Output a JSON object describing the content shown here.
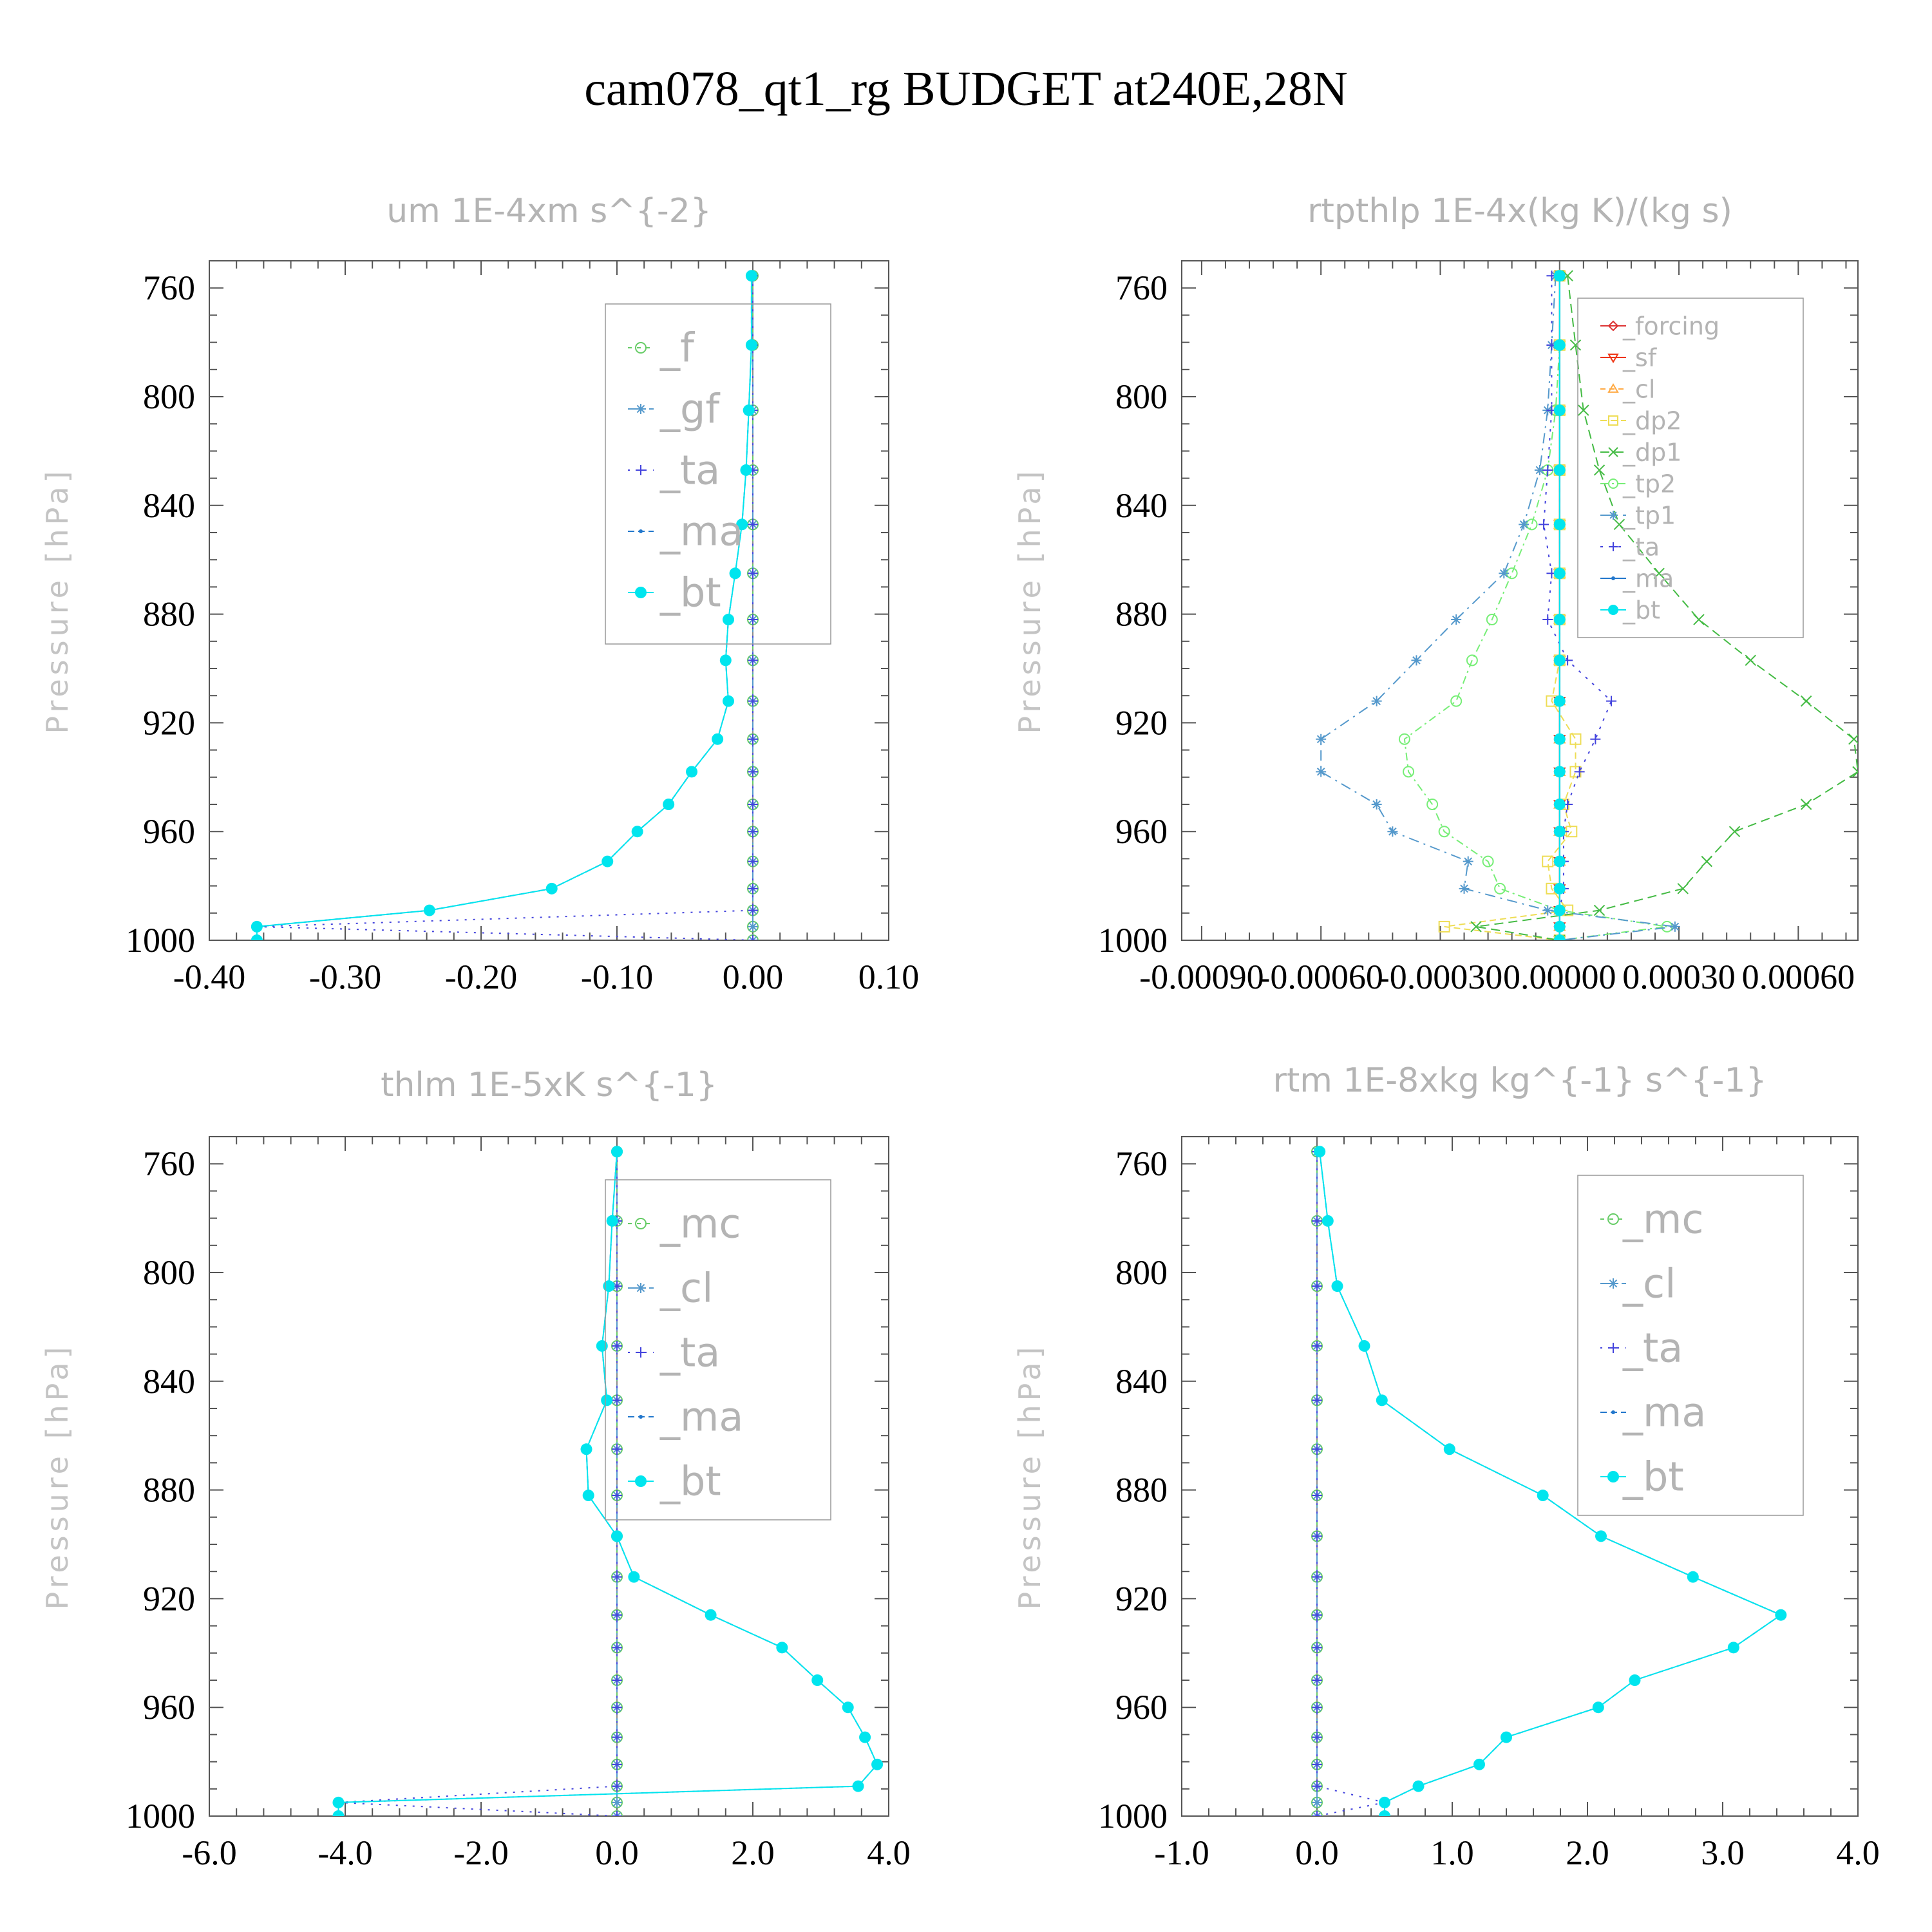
{
  "title": "cam078_qt1_rg  BUDGET at240E,28N",
  "chart_data": [
    {
      "type": "line",
      "title": "um   1E-4xm s^{-2}",
      "ylabel": "Pressure [hPa]",
      "xlim": [
        -0.4,
        0.1
      ],
      "xticks": [
        "-0.40",
        "-0.30",
        "-0.20",
        "-0.10",
        "0.00",
        "0.10"
      ],
      "xtick_values": [
        -0.4,
        -0.3,
        -0.2,
        -0.1,
        0.0,
        0.1
      ],
      "ylim": [
        1000,
        750
      ],
      "yticks": [
        "760",
        "800",
        "840",
        "880",
        "920",
        "960",
        "1000"
      ],
      "yticks_values": [
        760,
        800,
        840,
        880,
        920,
        960,
        1000
      ],
      "levels": [
        755.5,
        781,
        805,
        827,
        847,
        865,
        882,
        897,
        912,
        926,
        938,
        950,
        960,
        971,
        981,
        989,
        995,
        1000
      ],
      "legend_size": 62,
      "series": [
        {
          "name": "_f",
          "color": "#66cc66",
          "dash": "6 8",
          "marker": "circle-open",
          "values": [
            0,
            0,
            0,
            0,
            0,
            0,
            0,
            0,
            0,
            0,
            0,
            0,
            0,
            0,
            0,
            0,
            0,
            0
          ]
        },
        {
          "name": "_gf",
          "color": "#5599cc",
          "dash": "14 8 3 8",
          "marker": "star",
          "values": [
            0,
            0,
            0,
            0,
            0,
            0,
            0,
            0,
            0,
            0,
            0,
            0,
            0,
            0,
            0,
            0,
            0,
            0
          ]
        },
        {
          "name": "_ta",
          "color": "#4444dd",
          "dash": "3 10",
          "marker": "plus",
          "values": [
            0,
            0,
            0,
            0,
            0,
            0,
            0,
            0,
            0,
            0,
            0,
            0,
            0,
            0,
            0,
            0,
            -0.365,
            0
          ]
        },
        {
          "name": "_ma",
          "color": "#2277cc",
          "dash": "10 6",
          "marker": "dot",
          "values": [
            -0.001,
            -0.001,
            -0.003,
            -0.005,
            -0.008,
            -0.013,
            -0.018,
            -0.02,
            -0.018,
            -0.026,
            -0.045,
            -0.062,
            -0.085,
            -0.107,
            -0.148,
            -0.238,
            -0.365,
            -0.365
          ]
        },
        {
          "name": "_bt",
          "color": "#00e5ee",
          "dash": "",
          "marker": "disc",
          "values": [
            -0.001,
            -0.001,
            -0.003,
            -0.005,
            -0.008,
            -0.013,
            -0.018,
            -0.02,
            -0.018,
            -0.026,
            -0.045,
            -0.062,
            -0.085,
            -0.107,
            -0.148,
            -0.238,
            -0.365,
            -0.365
          ]
        }
      ]
    },
    {
      "type": "line",
      "title": "rtpthlp   1E-4x(kg K)/(kg s)",
      "ylabel": "Pressure [hPa]",
      "xlim": [
        -0.00095,
        0.00075
      ],
      "xticks": [
        "-0.00090",
        "-0.00060",
        "-0.00030",
        "0.00000",
        "0.00030",
        "0.00060"
      ],
      "xtick_values": [
        -0.0009,
        -0.0006,
        -0.0003,
        0.0,
        0.0003,
        0.0006
      ],
      "ylim": [
        1000,
        750
      ],
      "yticks": [
        "760",
        "800",
        "840",
        "880",
        "920",
        "960",
        "1000"
      ],
      "yticks_values": [
        760,
        800,
        840,
        880,
        920,
        960,
        1000
      ],
      "levels": [
        755.5,
        781,
        805,
        827,
        847,
        865,
        882,
        897,
        912,
        926,
        938,
        950,
        960,
        971,
        981,
        989,
        995,
        1000
      ],
      "legend_size": 38,
      "series": [
        {
          "name": "_forcing",
          "color": "#dd3333",
          "dash": "",
          "marker": "diamond",
          "values": [
            0,
            0,
            0,
            0,
            0,
            0,
            0,
            0,
            0,
            0,
            0,
            0,
            0,
            0,
            0,
            0,
            0,
            0
          ]
        },
        {
          "name": "_sf",
          "color": "#ee3311",
          "dash": "",
          "marker": "tri-down",
          "values": [
            0,
            0,
            0,
            0,
            0,
            0,
            0,
            0,
            0,
            0,
            0,
            0,
            0,
            0,
            0,
            0,
            0,
            0
          ]
        },
        {
          "name": "_cl",
          "color": "#ffaa44",
          "dash": "8 6",
          "marker": "tri-up",
          "values": [
            0,
            0,
            0,
            0,
            0,
            0,
            0,
            0,
            0,
            0,
            0,
            0,
            0,
            0,
            0,
            0,
            0,
            0
          ]
        },
        {
          "name": "_dp2",
          "color": "#eedd55",
          "dash": "10 6",
          "marker": "square",
          "values": [
            0,
            0,
            0,
            0,
            0,
            0,
            0,
            0,
            -2e-05,
            4e-05,
            4e-05,
            1e-05,
            3e-05,
            -3e-05,
            -2e-05,
            2e-05,
            -0.00029,
            0
          ]
        },
        {
          "name": "_dp1",
          "color": "#44bb44",
          "dash": "14 8",
          "marker": "x",
          "values": [
            2e-05,
            4e-05,
            6e-05,
            0.0001,
            0.00015,
            0.00025,
            0.00035,
            0.00048,
            0.00062,
            0.00074,
            0.00075,
            0.00062,
            0.00044,
            0.00037,
            0.00031,
            0.0001,
            -0.00021,
            0
          ]
        },
        {
          "name": "_tp2",
          "color": "#77ee77",
          "dash": "12 6 3 6",
          "marker": "circle-open",
          "values": [
            0,
            0,
            -1e-05,
            -3e-05,
            -7e-05,
            -0.00012,
            -0.00017,
            -0.00022,
            -0.00026,
            -0.00039,
            -0.00038,
            -0.00032,
            -0.00029,
            -0.00018,
            -0.00015,
            0,
            0.00027,
            0
          ]
        },
        {
          "name": "_tp1",
          "color": "#5599cc",
          "dash": "16 8 3 8",
          "marker": "star",
          "values": [
            -1e-05,
            -2e-05,
            -3e-05,
            -5e-05,
            -9e-05,
            -0.00014,
            -0.00026,
            -0.00036,
            -0.00046,
            -0.0006,
            -0.0006,
            -0.00046,
            -0.00042,
            -0.00023,
            -0.00024,
            -3e-05,
            0.00029,
            0
          ]
        },
        {
          "name": "_ta",
          "color": "#4444dd",
          "dash": "4 10",
          "marker": "plus",
          "values": [
            -2e-05,
            -2e-05,
            -2e-05,
            -3e-05,
            -4e-05,
            -2e-05,
            -3e-05,
            2e-05,
            0.00013,
            9e-05,
            5e-05,
            2e-05,
            1e-05,
            1e-05,
            1e-05,
            0,
            0,
            0
          ]
        },
        {
          "name": "_ma",
          "color": "#2277cc",
          "dash": "",
          "marker": "dot",
          "values": [
            0,
            0,
            0,
            0,
            0,
            0,
            0,
            0,
            0,
            0,
            0,
            0,
            0,
            0,
            0,
            0,
            0,
            0
          ]
        },
        {
          "name": "_bt",
          "color": "#00e5ee",
          "dash": "",
          "marker": "disc",
          "values": [
            0,
            0,
            0,
            0,
            0,
            0,
            0,
            0,
            0,
            0,
            0,
            0,
            0,
            0,
            0,
            0,
            0,
            0
          ]
        }
      ]
    },
    {
      "type": "line",
      "title": "thlm   1E-5xK s^{-1}",
      "ylabel": "Pressure [hPa]",
      "xlim": [
        -6.0,
        4.0
      ],
      "xticks": [
        "-6.0",
        "-4.0",
        "-2.0",
        "0.0",
        "2.0",
        "4.0"
      ],
      "xtick_values": [
        -6.0,
        -4.0,
        -2.0,
        0.0,
        2.0,
        4.0
      ],
      "ylim": [
        1000,
        750
      ],
      "yticks": [
        "760",
        "800",
        "840",
        "880",
        "920",
        "960",
        "1000"
      ],
      "yticks_values": [
        760,
        800,
        840,
        880,
        920,
        960,
        1000
      ],
      "levels": [
        755.5,
        781,
        805,
        827,
        847,
        865,
        882,
        897,
        912,
        926,
        938,
        950,
        960,
        971,
        981,
        989,
        995,
        1000
      ],
      "legend_size": 62,
      "series": [
        {
          "name": "_mc",
          "color": "#66cc66",
          "dash": "6 8",
          "marker": "circle-open",
          "values": [
            0,
            0,
            0,
            0,
            0,
            0,
            0,
            0,
            0,
            0,
            0,
            0,
            0,
            0,
            0,
            0,
            0,
            0
          ]
        },
        {
          "name": "_cl",
          "color": "#5599cc",
          "dash": "14 8 3 8",
          "marker": "star",
          "values": [
            0,
            0,
            0,
            0,
            0,
            0,
            0,
            0,
            0,
            0,
            0,
            0,
            0,
            0,
            0,
            0,
            0,
            0
          ]
        },
        {
          "name": "_ta",
          "color": "#4444dd",
          "dash": "3 10",
          "marker": "plus",
          "values": [
            0,
            0,
            0,
            0,
            0,
            0,
            0,
            0,
            0,
            0,
            0,
            0,
            0,
            0,
            0,
            0,
            -4.1,
            0
          ]
        },
        {
          "name": "_ma",
          "color": "#2277cc",
          "dash": "10 6",
          "marker": "dot",
          "values": [
            0,
            -0.07,
            -0.12,
            -0.22,
            -0.15,
            -0.45,
            -0.42,
            0,
            0.25,
            1.38,
            2.43,
            2.95,
            3.4,
            3.65,
            3.83,
            3.55,
            -4.1,
            -4.1
          ]
        },
        {
          "name": "_bt",
          "color": "#00e5ee",
          "dash": "",
          "marker": "disc",
          "values": [
            0,
            -0.07,
            -0.12,
            -0.22,
            -0.15,
            -0.45,
            -0.42,
            0,
            0.25,
            1.38,
            2.43,
            2.95,
            3.4,
            3.65,
            3.83,
            3.55,
            -4.1,
            -4.1
          ]
        }
      ]
    },
    {
      "type": "line",
      "title": "rtm   1E-8xkg kg^{-1} s^{-1}",
      "ylabel": "Pressure [hPa]",
      "xlim": [
        -1.0,
        4.0
      ],
      "xticks": [
        "-1.0",
        "0.0",
        "1.0",
        "2.0",
        "3.0",
        "4.0"
      ],
      "xtick_values": [
        -1.0,
        0.0,
        1.0,
        2.0,
        3.0,
        4.0
      ],
      "ylim": [
        1000,
        750
      ],
      "yticks": [
        "760",
        "800",
        "840",
        "880",
        "920",
        "960",
        "1000"
      ],
      "yticks_values": [
        760,
        800,
        840,
        880,
        920,
        960,
        1000
      ],
      "levels": [
        755.5,
        781,
        805,
        827,
        847,
        865,
        882,
        897,
        912,
        926,
        938,
        950,
        960,
        971,
        981,
        989,
        995,
        1000
      ],
      "legend_size": 62,
      "series": [
        {
          "name": "_mc",
          "color": "#66cc66",
          "dash": "6 8",
          "marker": "circle-open",
          "values": [
            0,
            0,
            0,
            0,
            0,
            0,
            0,
            0,
            0,
            0,
            0,
            0,
            0,
            0,
            0,
            0,
            0,
            0
          ]
        },
        {
          "name": "_cl",
          "color": "#5599cc",
          "dash": "14 8 3 8",
          "marker": "star",
          "values": [
            0,
            0,
            0,
            0,
            0,
            0,
            0,
            0,
            0,
            0,
            0,
            0,
            0,
            0,
            0,
            0,
            0,
            0
          ]
        },
        {
          "name": "_ta",
          "color": "#4444dd",
          "dash": "3 10",
          "marker": "plus",
          "values": [
            0,
            0,
            0,
            0,
            0,
            0,
            0,
            0,
            0,
            0,
            0,
            0,
            0,
            0,
            0,
            0,
            0.5,
            0
          ]
        },
        {
          "name": "_ma",
          "color": "#2277cc",
          "dash": "10 6",
          "marker": "dot",
          "values": [
            0.02,
            0.08,
            0.15,
            0.35,
            0.48,
            0.98,
            1.67,
            2.1,
            2.78,
            3.43,
            3.08,
            2.35,
            2.08,
            1.4,
            1.2,
            0.75,
            0.5,
            0.5
          ]
        },
        {
          "name": "_bt",
          "color": "#00e5ee",
          "dash": "",
          "marker": "disc",
          "values": [
            0.02,
            0.08,
            0.15,
            0.35,
            0.48,
            0.98,
            1.67,
            2.1,
            2.78,
            3.43,
            3.08,
            2.35,
            2.08,
            1.4,
            1.2,
            0.75,
            0.5,
            0.5
          ]
        }
      ]
    }
  ]
}
